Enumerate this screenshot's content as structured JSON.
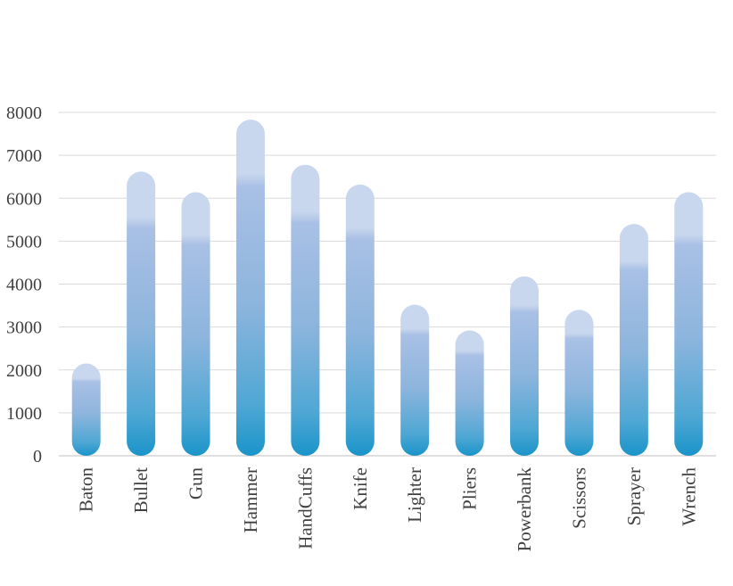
{
  "chart_data": {
    "type": "bar",
    "title": "",
    "xlabel": "",
    "ylabel": "",
    "categories": [
      "Baton",
      "Bullet",
      "Gun",
      "Hammer",
      "HandCuffs",
      "Knife",
      "Lighter",
      "Pliers",
      "Powerbank",
      "Scissors",
      "Sprayer",
      "Wrench"
    ],
    "values": [
      2150,
      6620,
      6140,
      7830,
      6780,
      6320,
      3520,
      2920,
      4180,
      3400,
      5400,
      6140
    ],
    "ylim": [
      0,
      8000
    ],
    "yticks": [
      0,
      1000,
      2000,
      3000,
      4000,
      5000,
      6000,
      7000,
      8000
    ],
    "grid": true,
    "legend": "none",
    "colors": {
      "bar_top": "#c9d7ee",
      "bar_mid": "#a3bde3",
      "bar_bottom": "#1a94c9",
      "grid": "#d9d9d9",
      "text": "#404040"
    }
  }
}
